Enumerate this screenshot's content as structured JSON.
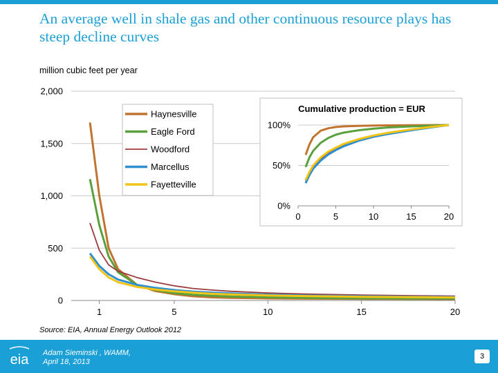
{
  "slide": {
    "title": "An average well in shale gas and other continuous resource plays has steep decline curves",
    "units_label": "million cubic feet per year",
    "source": "Source:  EIA, Annual Energy Outlook 2012",
    "presenter_line1": "Adam Sieminski , WAMM,",
    "presenter_line2": "April 18, 2013",
    "page_number": "3",
    "logo_text": "eia"
  },
  "colors": {
    "accent": "#1a9fd6",
    "Haynesville": "#c0742f",
    "Eagle Ford": "#5aa03c",
    "Woodford": "#9b3a3a",
    "Marcellus": "#2f8fd0",
    "Fayetteville": "#f2c418"
  },
  "chart_data": [
    {
      "type": "line",
      "xlim": [
        0,
        20
      ],
      "ylim": [
        0,
        2000
      ],
      "x_ticks": [
        1,
        5,
        10,
        15,
        20
      ],
      "y_ticks": [
        0,
        500,
        1000,
        1500,
        2000
      ],
      "y_tick_labels": [
        "0",
        "500",
        "1,000",
        "1,500",
        "2,000"
      ],
      "grid": true,
      "legend_position": "top-left",
      "x": [
        0.5,
        1,
        1.5,
        2,
        3,
        4,
        5,
        6,
        7,
        8,
        10,
        12,
        15,
        18,
        20
      ],
      "series": [
        {
          "name": "Haynesville",
          "values": [
            1700,
            1000,
            500,
            300,
            150,
            90,
            60,
            40,
            30,
            25,
            20,
            17,
            15,
            14,
            13
          ]
        },
        {
          "name": "Eagle Ford",
          "values": [
            1160,
            720,
            420,
            270,
            150,
            100,
            70,
            55,
            45,
            38,
            30,
            25,
            20,
            18,
            17
          ]
        },
        {
          "name": "Woodford",
          "values": [
            740,
            480,
            340,
            280,
            220,
            175,
            140,
            115,
            100,
            88,
            72,
            62,
            52,
            45,
            42
          ]
        },
        {
          "name": "Marcellus",
          "values": [
            450,
            330,
            250,
            200,
            150,
            120,
            100,
            85,
            75,
            67,
            56,
            48,
            40,
            35,
            33
          ]
        },
        {
          "name": "Fayetteville",
          "values": [
            420,
            300,
            220,
            175,
            130,
            105,
            88,
            75,
            65,
            58,
            48,
            42,
            35,
            31,
            29
          ]
        }
      ]
    },
    {
      "type": "line",
      "title": "Cumulative production = EUR",
      "xlim": [
        0,
        20
      ],
      "ylim": [
        0,
        100
      ],
      "x_ticks": [
        0,
        5,
        10,
        15,
        20
      ],
      "y_ticks": [
        0,
        50,
        100
      ],
      "y_tick_labels": [
        "0%",
        "50%",
        "100%"
      ],
      "grid": true,
      "x": [
        1,
        1.5,
        2,
        3,
        4,
        5,
        6,
        8,
        10,
        12,
        15,
        18,
        20
      ],
      "series": [
        {
          "name": "Haynesville",
          "values": [
            63,
            76,
            85,
            93,
            96,
            97.5,
            98.3,
            99,
            99.4,
            99.6,
            99.8,
            99.9,
            100
          ]
        },
        {
          "name": "Eagle Ford",
          "values": [
            48,
            60,
            68,
            78,
            84,
            88,
            90.5,
            93.5,
            95.5,
            97,
            98.3,
            99.3,
            100
          ]
        },
        {
          "name": "Woodford",
          "values": [
            31,
            41,
            48,
            58,
            65,
            70,
            74.5,
            81,
            86,
            89.5,
            93.5,
            97.5,
            100
          ]
        },
        {
          "name": "Marcellus",
          "values": [
            28,
            38,
            46,
            56,
            63.5,
            69,
            73.5,
            80.5,
            85.5,
            89,
            93.5,
            97.5,
            100
          ]
        },
        {
          "name": "Fayetteville",
          "values": [
            32,
            42,
            50,
            60,
            67,
            72,
            76.5,
            82.5,
            87,
            90.5,
            94.5,
            98,
            100
          ]
        }
      ]
    }
  ]
}
